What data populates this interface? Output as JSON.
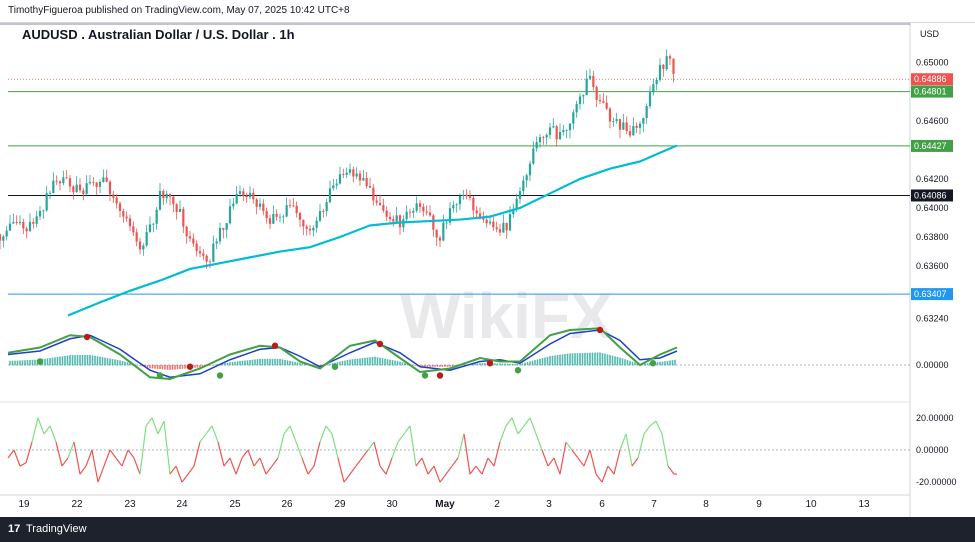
{
  "header": {
    "publisher": "TimothyFigueroa published on TradingView.com, May 07, 2025 10:42 UTC+8",
    "chart_title": "AUDUSD . Australian Dollar / U.S. Dollar . 1h",
    "currency": "USD"
  },
  "footer": {
    "brand": "TradingView",
    "logo_glyph": "17"
  },
  "watermark": "WikiFX",
  "colors": {
    "bull": "#26a69a",
    "bear": "#ef5350",
    "ma": "#00bcd4",
    "macd_green": "#43a047",
    "macd_blue": "#1e40c8",
    "macd_red": "#b71c1c",
    "level_green": "#43a047",
    "level_black": "#131722",
    "level_blue": "#2196f3",
    "current_red": "#ef5350"
  },
  "chart_data": [
    {
      "type": "candlestick",
      "title": "AUDUSD . Australian Dollar / U.S. Dollar . 1h",
      "unit": "USD",
      "x_ticks": [
        "19",
        "22",
        "23",
        "24",
        "25",
        "26",
        "29",
        "30",
        "May",
        "2",
        "3",
        "6",
        "7",
        "8",
        "9",
        "10",
        "13"
      ],
      "y_ticks": [
        "0.65000",
        "0.64600",
        "0.64200",
        "0.64000",
        "0.63800",
        "0.63600",
        "0.63240"
      ],
      "y_tick_values": [
        0.65,
        0.646,
        0.642,
        0.64,
        0.638,
        0.636,
        0.6324
      ],
      "ylim": [
        0.6316,
        0.6528
      ],
      "close_path": [
        [
          0,
          0.6382
        ],
        [
          10,
          0.6385
        ],
        [
          20,
          0.6388
        ],
        [
          30,
          0.6386
        ],
        [
          40,
          0.6397
        ],
        [
          50,
          0.6412
        ],
        [
          60,
          0.642
        ],
        [
          70,
          0.6416
        ],
        [
          80,
          0.641
        ],
        [
          90,
          0.6415
        ],
        [
          100,
          0.642
        ],
        [
          110,
          0.6412
        ],
        [
          120,
          0.64
        ],
        [
          130,
          0.6388
        ],
        [
          140,
          0.6372
        ],
        [
          150,
          0.6385
        ],
        [
          160,
          0.6408
        ],
        [
          170,
          0.6412
        ],
        [
          180,
          0.6395
        ],
        [
          190,
          0.6378
        ],
        [
          200,
          0.6368
        ],
        [
          210,
          0.6365
        ],
        [
          220,
          0.6385
        ],
        [
          230,
          0.6398
        ],
        [
          240,
          0.641
        ],
        [
          250,
          0.6408
        ],
        [
          260,
          0.6402
        ],
        [
          270,
          0.639
        ],
        [
          280,
          0.6395
        ],
        [
          290,
          0.64
        ],
        [
          300,
          0.6395
        ],
        [
          310,
          0.6385
        ],
        [
          320,
          0.6395
        ],
        [
          330,
          0.641
        ],
        [
          340,
          0.642
        ],
        [
          350,
          0.6425
        ],
        [
          360,
          0.642
        ],
        [
          370,
          0.641
        ],
        [
          380,
          0.6398
        ],
        [
          390,
          0.6392
        ],
        [
          400,
          0.639
        ],
        [
          410,
          0.6398
        ],
        [
          420,
          0.6402
        ],
        [
          430,
          0.6392
        ],
        [
          440,
          0.638
        ],
        [
          450,
          0.6398
        ],
        [
          460,
          0.641
        ],
        [
          470,
          0.6405
        ],
        [
          480,
          0.6392
        ],
        [
          490,
          0.6388
        ],
        [
          500,
          0.6382
        ],
        [
          510,
          0.6392
        ],
        [
          520,
          0.6412
        ],
        [
          530,
          0.6432
        ],
        [
          540,
          0.645
        ],
        [
          550,
          0.6455
        ],
        [
          560,
          0.6448
        ],
        [
          570,
          0.6462
        ],
        [
          580,
          0.6478
        ],
        [
          590,
          0.6488
        ],
        [
          600,
          0.6472
        ],
        [
          610,
          0.6462
        ],
        [
          620,
          0.6458
        ],
        [
          630,
          0.6448
        ],
        [
          640,
          0.646
        ],
        [
          650,
          0.6478
        ],
        [
          660,
          0.6496
        ],
        [
          670,
          0.6505
        ],
        [
          677,
          0.6488
        ]
      ],
      "ma_line": [
        [
          68,
          0.6326
        ],
        [
          100,
          0.6335
        ],
        [
          130,
          0.6343
        ],
        [
          160,
          0.635
        ],
        [
          190,
          0.6358
        ],
        [
          220,
          0.6362
        ],
        [
          250,
          0.6366
        ],
        [
          280,
          0.637
        ],
        [
          310,
          0.6373
        ],
        [
          340,
          0.638
        ],
        [
          370,
          0.6388
        ],
        [
          400,
          0.639
        ],
        [
          430,
          0.6391
        ],
        [
          460,
          0.6392
        ],
        [
          490,
          0.6394
        ],
        [
          520,
          0.64
        ],
        [
          550,
          0.641
        ],
        [
          580,
          0.642
        ],
        [
          610,
          0.6427
        ],
        [
          640,
          0.6432
        ],
        [
          660,
          0.6438
        ],
        [
          677,
          0.6443
        ]
      ],
      "levels": [
        {
          "label": "0.64886",
          "value": 0.64886,
          "style": "dotted",
          "color": "#ef5350",
          "current": true
        },
        {
          "label": "0.64801",
          "value": 0.64801,
          "color": "#43a047"
        },
        {
          "label": "0.64427",
          "value": 0.64427,
          "color": "#43a047"
        },
        {
          "label": "0.64086",
          "value": 0.64086,
          "color": "#131722"
        },
        {
          "label": "0.63407",
          "value": 0.63407,
          "color": "#2196f3"
        }
      ]
    },
    {
      "type": "line",
      "panel": "oscillator-1",
      "y_ticks": [
        "0.00000"
      ],
      "ylim": [
        -1,
        1
      ],
      "series": [
        {
          "color": "#43a047",
          "values": [
            [
              8,
              0.35
            ],
            [
              40,
              0.5
            ],
            [
              70,
              0.85
            ],
            [
              90,
              0.8
            ],
            [
              120,
              0.3
            ],
            [
              150,
              -0.35
            ],
            [
              170,
              -0.4
            ],
            [
              200,
              -0.1
            ],
            [
              230,
              0.3
            ],
            [
              260,
              0.55
            ],
            [
              280,
              0.5
            ],
            [
              300,
              0.1
            ],
            [
              320,
              -0.1
            ],
            [
              350,
              0.55
            ],
            [
              375,
              0.7
            ],
            [
              400,
              0.2
            ],
            [
              420,
              -0.2
            ],
            [
              450,
              -0.1
            ],
            [
              480,
              0.2
            ],
            [
              500,
              0.1
            ],
            [
              520,
              0.1
            ],
            [
              550,
              0.85
            ],
            [
              570,
              1.0
            ],
            [
              600,
              1.05
            ],
            [
              620,
              0.5
            ],
            [
              640,
              0.0
            ],
            [
              660,
              0.3
            ],
            [
              677,
              0.5
            ]
          ]
        },
        {
          "color": "#1e40c8",
          "values": [
            [
              8,
              0.3
            ],
            [
              40,
              0.4
            ],
            [
              70,
              0.75
            ],
            [
              90,
              0.85
            ],
            [
              120,
              0.45
            ],
            [
              150,
              -0.15
            ],
            [
              170,
              -0.35
            ],
            [
              200,
              -0.25
            ],
            [
              230,
              0.15
            ],
            [
              260,
              0.45
            ],
            [
              280,
              0.5
            ],
            [
              300,
              0.25
            ],
            [
              320,
              -0.05
            ],
            [
              350,
              0.35
            ],
            [
              375,
              0.65
            ],
            [
              400,
              0.35
            ],
            [
              420,
              -0.05
            ],
            [
              450,
              -0.15
            ],
            [
              480,
              0.1
            ],
            [
              500,
              0.15
            ],
            [
              520,
              0.05
            ],
            [
              550,
              0.6
            ],
            [
              570,
              0.9
            ],
            [
              600,
              1.0
            ],
            [
              620,
              0.7
            ],
            [
              640,
              0.15
            ],
            [
              660,
              0.2
            ],
            [
              677,
              0.4
            ]
          ]
        }
      ],
      "dots": [
        {
          "x": 40,
          "y": 0.1,
          "color": "#43a047"
        },
        {
          "x": 87,
          "y": 0.8,
          "color": "#b71c1c"
        },
        {
          "x": 160,
          "y": -0.3,
          "color": "#43a047"
        },
        {
          "x": 190,
          "y": -0.05,
          "color": "#b71c1c"
        },
        {
          "x": 220,
          "y": -0.3,
          "color": "#43a047"
        },
        {
          "x": 275,
          "y": 0.55,
          "color": "#b71c1c"
        },
        {
          "x": 335,
          "y": -0.05,
          "color": "#43a047"
        },
        {
          "x": 380,
          "y": 0.6,
          "color": "#b71c1c"
        },
        {
          "x": 425,
          "y": -0.3,
          "color": "#43a047"
        },
        {
          "x": 440,
          "y": -0.3,
          "color": "#b71c1c"
        },
        {
          "x": 490,
          "y": 0.05,
          "color": "#b71c1c"
        },
        {
          "x": 518,
          "y": -0.15,
          "color": "#43a047"
        },
        {
          "x": 600,
          "y": 1.0,
          "color": "#b71c1c"
        },
        {
          "x": 653,
          "y": 0.05,
          "color": "#43a047"
        }
      ]
    },
    {
      "type": "line",
      "panel": "oscillator-2",
      "y_ticks": [
        "20.00000",
        "0.00000",
        "-20.00000"
      ],
      "y_tick_values": [
        20,
        0,
        -20
      ],
      "ylim": [
        -28,
        28
      ],
      "values": [
        [
          8,
          -5
        ],
        [
          14,
          0
        ],
        [
          20,
          -10
        ],
        [
          26,
          -8
        ],
        [
          32,
          5
        ],
        [
          38,
          20
        ],
        [
          44,
          10
        ],
        [
          50,
          15
        ],
        [
          56,
          5
        ],
        [
          62,
          -10
        ],
        [
          68,
          -5
        ],
        [
          74,
          5
        ],
        [
          80,
          -15
        ],
        [
          86,
          -10
        ],
        [
          92,
          0
        ],
        [
          98,
          -20
        ],
        [
          104,
          -10
        ],
        [
          110,
          0
        ],
        [
          116,
          -5
        ],
        [
          122,
          -10
        ],
        [
          128,
          0
        ],
        [
          134,
          -5
        ],
        [
          140,
          -15
        ],
        [
          146,
          15
        ],
        [
          152,
          20
        ],
        [
          158,
          10
        ],
        [
          164,
          18
        ],
        [
          170,
          -15
        ],
        [
          176,
          -10
        ],
        [
          182,
          -20
        ],
        [
          188,
          -15
        ],
        [
          194,
          -10
        ],
        [
          200,
          5
        ],
        [
          206,
          10
        ],
        [
          212,
          15
        ],
        [
          218,
          5
        ],
        [
          224,
          -10
        ],
        [
          230,
          -5
        ],
        [
          236,
          -15
        ],
        [
          242,
          -5
        ],
        [
          248,
          0
        ],
        [
          254,
          -10
        ],
        [
          260,
          -5
        ],
        [
          266,
          -15
        ],
        [
          272,
          -10
        ],
        [
          278,
          -5
        ],
        [
          284,
          10
        ],
        [
          290,
          15
        ],
        [
          296,
          5
        ],
        [
          302,
          -5
        ],
        [
          308,
          -15
        ],
        [
          314,
          -10
        ],
        [
          320,
          5
        ],
        [
          326,
          15
        ],
        [
          332,
          10
        ],
        [
          338,
          -5
        ],
        [
          344,
          -20
        ],
        [
          350,
          -15
        ],
        [
          356,
          -10
        ],
        [
          362,
          -5
        ],
        [
          368,
          0
        ],
        [
          374,
          5
        ],
        [
          380,
          -10
        ],
        [
          386,
          -15
        ],
        [
          392,
          -5
        ],
        [
          398,
          5
        ],
        [
          404,
          10
        ],
        [
          410,
          15
        ],
        [
          416,
          -10
        ],
        [
          422,
          -5
        ],
        [
          428,
          -15
        ],
        [
          434,
          -10
        ],
        [
          440,
          -20
        ],
        [
          446,
          -15
        ],
        [
          452,
          -10
        ],
        [
          458,
          -5
        ],
        [
          464,
          10
        ],
        [
          470,
          -15
        ],
        [
          476,
          -10
        ],
        [
          482,
          -15
        ],
        [
          488,
          -5
        ],
        [
          494,
          -10
        ],
        [
          500,
          5
        ],
        [
          506,
          15
        ],
        [
          512,
          20
        ],
        [
          518,
          10
        ],
        [
          524,
          15
        ],
        [
          530,
          20
        ],
        [
          536,
          10
        ],
        [
          542,
          0
        ],
        [
          548,
          -10
        ],
        [
          554,
          -5
        ],
        [
          560,
          -15
        ],
        [
          566,
          5
        ],
        [
          572,
          0
        ],
        [
          578,
          -5
        ],
        [
          584,
          -10
        ],
        [
          590,
          0
        ],
        [
          596,
          -15
        ],
        [
          602,
          -20
        ],
        [
          608,
          -10
        ],
        [
          614,
          -15
        ],
        [
          620,
          0
        ],
        [
          626,
          10
        ],
        [
          632,
          -10
        ],
        [
          638,
          -5
        ],
        [
          644,
          10
        ],
        [
          650,
          15
        ],
        [
          656,
          18
        ],
        [
          662,
          10
        ],
        [
          668,
          -10
        ],
        [
          674,
          -15
        ],
        [
          677,
          -15
        ]
      ]
    }
  ]
}
